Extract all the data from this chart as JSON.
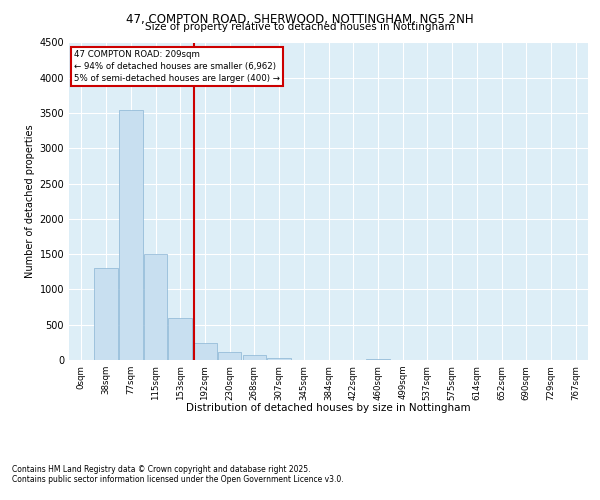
{
  "title1": "47, COMPTON ROAD, SHERWOOD, NOTTINGHAM, NG5 2NH",
  "title2": "Size of property relative to detached houses in Nottingham",
  "xlabel": "Distribution of detached houses by size in Nottingham",
  "ylabel": "Number of detached properties",
  "bin_labels": [
    "0sqm",
    "38sqm",
    "77sqm",
    "115sqm",
    "153sqm",
    "192sqm",
    "230sqm",
    "268sqm",
    "307sqm",
    "345sqm",
    "384sqm",
    "422sqm",
    "460sqm",
    "499sqm",
    "537sqm",
    "575sqm",
    "614sqm",
    "652sqm",
    "690sqm",
    "729sqm",
    "767sqm"
  ],
  "bar_values": [
    5,
    1300,
    3550,
    1500,
    600,
    240,
    110,
    65,
    30,
    5,
    0,
    0,
    15,
    0,
    0,
    0,
    0,
    0,
    0,
    0,
    0
  ],
  "bar_color": "#c8dff0",
  "bar_edge_color": "#8ab4d4",
  "property_line_x": 4.57,
  "vline_color": "#cc0000",
  "annotation_title": "47 COMPTON ROAD: 209sqm",
  "annotation_line1": "← 94% of detached houses are smaller (6,962)",
  "annotation_line2": "5% of semi-detached houses are larger (400) →",
  "annotation_box_color": "#cc0000",
  "ylim": [
    0,
    4500
  ],
  "yticks": [
    0,
    500,
    1000,
    1500,
    2000,
    2500,
    3000,
    3500,
    4000,
    4500
  ],
  "footnote1": "Contains HM Land Registry data © Crown copyright and database right 2025.",
  "footnote2": "Contains public sector information licensed under the Open Government Licence v3.0.",
  "background_color": "#ddeef7",
  "grid_color": "#ffffff"
}
